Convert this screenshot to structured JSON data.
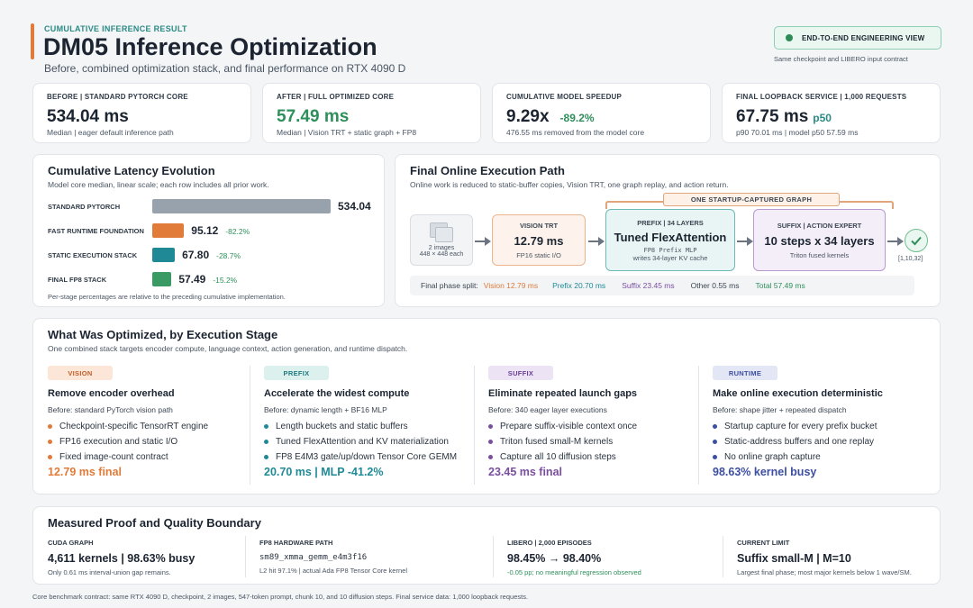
{
  "header": {
    "kicker": "CUMULATIVE INFERENCE RESULT",
    "title": "DM05 Inference Optimization",
    "subtitle": "Before, combined optimization stack, and final performance on RTX 4090 D",
    "pill": "END-TO-END ENGINEERING VIEW",
    "pill_note": "Same checkpoint and LIBERO input contract"
  },
  "metrics": [
    {
      "label": "BEFORE | STANDARD PYTORCH CORE",
      "value": "534.04 ms",
      "extra": "",
      "sub": "Median | eager default inference path"
    },
    {
      "label": "AFTER | FULL OPTIMIZED CORE",
      "value": "57.49 ms",
      "extra": "",
      "sub": "Median | Vision TRT + static graph + FP8"
    },
    {
      "label": "CUMULATIVE MODEL SPEEDUP",
      "value": "9.29x",
      "extra": "-89.2%",
      "sub": "476.55 ms removed from the model core"
    },
    {
      "label": "FINAL LOOPBACK SERVICE | 1,000 REQUESTS",
      "value": "67.75 ms",
      "extra": "p50",
      "sub": "p90 70.01 ms | model p50 57.59 ms"
    }
  ],
  "latency": {
    "title": "Cumulative Latency Evolution",
    "subtitle": "Model core median, linear scale; each row includes all prior work.",
    "note": "Per-stage percentages are relative to the preceding cumulative implementation."
  },
  "chart_data": {
    "type": "bar",
    "categories": [
      "STANDARD PYTORCH",
      "FAST RUNTIME FOUNDATION",
      "STATIC EXECUTION STACK",
      "FINAL FP8 STACK"
    ],
    "values": [
      534.04,
      95.12,
      67.8,
      57.49
    ],
    "value_labels": [
      "534.04",
      "95.12",
      "67.80",
      "57.49"
    ],
    "pct_labels": [
      "",
      "-82.2%",
      "-28.7%",
      "-15.2%"
    ],
    "colors": [
      "#98a2ad",
      "#e07b39",
      "#1f8a96",
      "#3a9a64"
    ],
    "title": "Cumulative Latency Evolution",
    "xlabel": "",
    "ylabel": "",
    "xlim": [
      0,
      534.04
    ],
    "orientation": "horizontal",
    "grid": false
  },
  "path": {
    "title": "Final Online Execution Path",
    "subtitle": "Online work is reduced to static-buffer copies, Vision TRT, one graph replay, and action return.",
    "graph_label": "ONE STARTUP-CAPTURED GRAPH",
    "input_label": "2 images",
    "input_sub": "448 × 448 each",
    "output_shape": "[1,10,32]",
    "nodes": {
      "vision": {
        "label": "VISION TRT",
        "value": "12.79 ms",
        "note": "FP16 static I/O"
      },
      "prefix": {
        "label": "PREFIX | 34 LAYERS",
        "value": "Tuned FlexAttention",
        "code": "FP8 Prefix MLP",
        "note": "writes 34-layer KV cache"
      },
      "suffix": {
        "label": "SUFFIX | ACTION EXPERT",
        "value": "10 steps x 34 layers",
        "note": "Triton fused kernels"
      }
    },
    "split": {
      "label": "Final phase split:",
      "vision": "Vision 12.79 ms",
      "prefix": "Prefix 20.70 ms",
      "suffix": "Suffix 23.45 ms",
      "other": "Other 0.55 ms",
      "total": "Total 57.49 ms"
    }
  },
  "optimized": {
    "title": "What Was Optimized, by Execution Stage",
    "subtitle": "One combined stack targets encoder compute, language context, action generation, and runtime dispatch.",
    "columns": [
      {
        "tag": "VISION",
        "head": "Remove encoder overhead",
        "before": "Before: standard PyTorch vision path",
        "items": [
          "Checkpoint-specific TensorRT engine",
          "FP16 execution and static I/O",
          "Fixed image-count contract"
        ],
        "final": "12.79 ms final"
      },
      {
        "tag": "PREFIX",
        "head": "Accelerate the widest compute",
        "before": "Before: dynamic length + BF16 MLP",
        "items": [
          "Length buckets and static buffers",
          "Tuned FlexAttention and KV materialization",
          "FP8 E4M3 gate/up/down Tensor Core GEMM"
        ],
        "final": "20.70 ms | MLP -41.2%"
      },
      {
        "tag": "SUFFIX",
        "head": "Eliminate repeated launch gaps",
        "before": "Before: 340 eager layer executions",
        "items": [
          "Prepare suffix-visible context once",
          "Triton fused small-M kernels",
          "Capture all 10 diffusion steps"
        ],
        "final": "23.45 ms final"
      },
      {
        "tag": "RUNTIME",
        "head": "Make online execution deterministic",
        "before": "Before: shape jitter + repeated dispatch",
        "items": [
          "Startup capture for every prefix bucket",
          "Static-address buffers and one replay",
          "No online graph capture"
        ],
        "final": "98.63% kernel busy"
      }
    ]
  },
  "proof": {
    "title": "Measured Proof and Quality Boundary",
    "cells": [
      {
        "label": "CUDA GRAPH",
        "value": "4,611 kernels | 98.63% busy",
        "sub": "Only 0.61 ms interval-union gap remains."
      },
      {
        "label": "FP8 HARDWARE PATH",
        "value": "sm89_xmma_gemm_e4m3f16",
        "sub": "L2 hit 97.1% | actual Ada FP8 Tensor Core kernel"
      },
      {
        "label": "LIBERO | 2,000 EPISODES",
        "value": "98.45% → 98.40%",
        "sub": "-0.05 pp; no meaningful regression observed"
      },
      {
        "label": "CURRENT LIMIT",
        "value": "Suffix small-M | M=10",
        "sub": "Largest final phase; most major kernels below 1 wave/SM."
      }
    ]
  },
  "footer": "Core benchmark contract: same RTX 4090 D, checkpoint, 2 images, 547-token prompt, chunk 10, and 10 diffusion steps. Final service data: 1,000 loopback requests.",
  "colors": {
    "vision": "#e07b39",
    "prefix": "#1f8a96",
    "suffix": "#7a4fa0",
    "runtime": "#3d4fa0",
    "green": "#2f8f5b"
  }
}
